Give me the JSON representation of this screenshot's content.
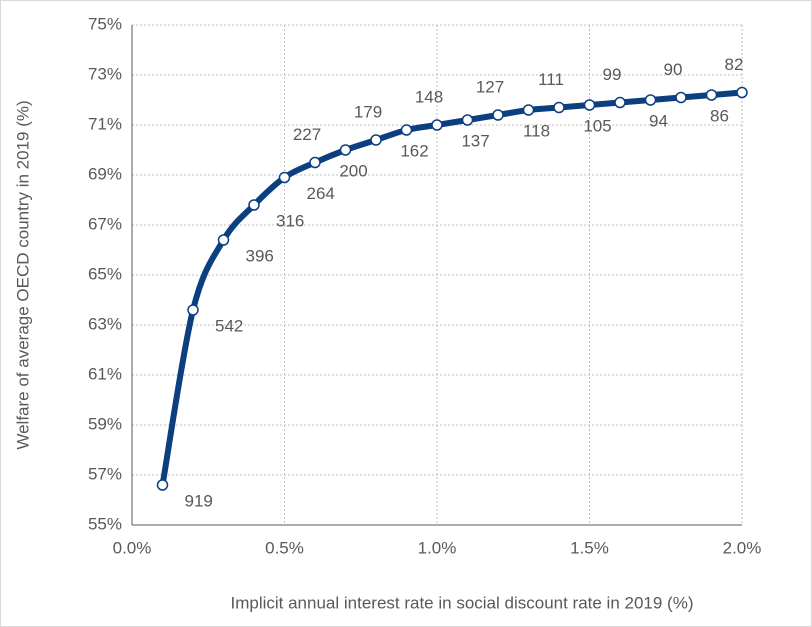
{
  "chart_data": {
    "type": "line",
    "x_label": "Implicit annual interest rate in social discount rate in 2019 (%)",
    "y_label": "Welfare of average OECD country in 2019 (%)",
    "x": [
      0.1,
      0.2,
      0.3,
      0.4,
      0.5,
      0.6,
      0.7,
      0.8,
      0.9,
      1.0,
      1.1,
      1.2,
      1.3,
      1.4,
      1.5,
      1.6,
      1.7,
      1.8,
      1.9,
      2.0
    ],
    "series": [
      {
        "color": "#0b3f80",
        "values": [
          56.6,
          63.6,
          66.4,
          67.8,
          68.9,
          69.5,
          70.0,
          70.4,
          70.8,
          71.0,
          71.2,
          71.4,
          71.6,
          71.7,
          71.8,
          71.9,
          72.0,
          72.1,
          72.2,
          72.3
        ],
        "point_labels": [
          919,
          542,
          396,
          316,
          264,
          227,
          200,
          179,
          162,
          148,
          137,
          127,
          118,
          111,
          105,
          99,
          94,
          90,
          86,
          82
        ]
      }
    ],
    "xlim": [
      0,
      2.0
    ],
    "xticks": [
      {
        "value": 0,
        "label": "0.0%"
      },
      {
        "value": 0.5,
        "label": "0.5%"
      },
      {
        "value": 1.0,
        "label": "1.0%"
      },
      {
        "value": 1.5,
        "label": "1.5%"
      },
      {
        "value": 2.0,
        "label": "2.0%"
      }
    ],
    "ylim": [
      55,
      75
    ],
    "yticks": [
      {
        "value": 55,
        "label": "55%"
      },
      {
        "value": 57,
        "label": "57%"
      },
      {
        "value": 59,
        "label": "59%"
      },
      {
        "value": 61,
        "label": "61%"
      },
      {
        "value": 63,
        "label": "63%"
      },
      {
        "value": 65,
        "label": "65%"
      },
      {
        "value": 67,
        "label": "67%"
      },
      {
        "value": 69,
        "label": "69%"
      },
      {
        "value": 71,
        "label": "71%"
      },
      {
        "value": 73,
        "label": "73%"
      },
      {
        "value": 75,
        "label": "75%"
      }
    ],
    "grid": true
  }
}
